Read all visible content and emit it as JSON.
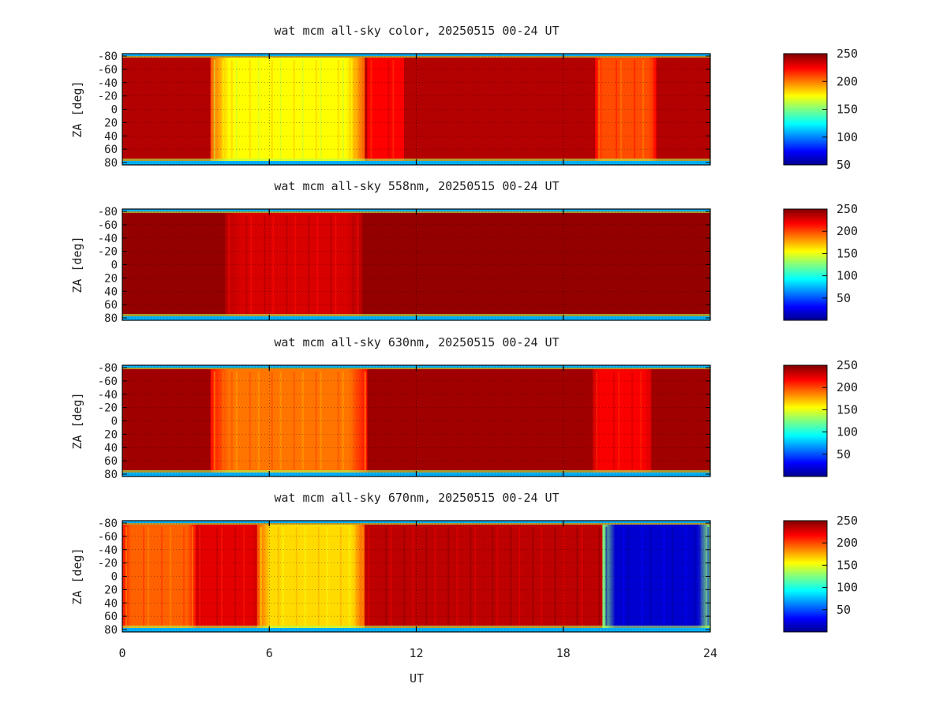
{
  "chart_data": [
    {
      "type": "heatmap",
      "title": "wat mcm all-sky color, 20250515 00-24 UT",
      "ylabel": "ZA [deg]",
      "xlim": [
        0,
        24
      ],
      "ylim": [
        -90,
        90
      ],
      "yticks": [
        "-80",
        "-60",
        "-40",
        "-20",
        "0",
        "20",
        "40",
        "60",
        "80"
      ],
      "colorbar": {
        "min": 50,
        "max": 250,
        "ticks": [
          "50",
          "100",
          "150",
          "200",
          "250"
        ]
      },
      "grid": true,
      "features": [
        {
          "t0": 3.6,
          "t1": 9.9,
          "value": 175
        },
        {
          "t0": 10.0,
          "t1": 11.5,
          "value": 225
        },
        {
          "t0": 19.3,
          "t1": 21.8,
          "value": 210
        }
      ],
      "background_value": 240
    },
    {
      "type": "heatmap",
      "title": "wat mcm all-sky 558nm, 20250515 00-24 UT",
      "ylabel": "ZA [deg]",
      "xlim": [
        0,
        24
      ],
      "ylim": [
        -90,
        90
      ],
      "yticks": [
        "-80",
        "-60",
        "-40",
        "-20",
        "0",
        "20",
        "40",
        "60",
        "80"
      ],
      "colorbar": {
        "min": 0,
        "max": 250,
        "ticks": [
          "50",
          "100",
          "150",
          "200",
          "250"
        ]
      },
      "grid": true,
      "features": [
        {
          "t0": 4.2,
          "t1": 9.8,
          "value": 228
        }
      ],
      "background_value": 245
    },
    {
      "type": "heatmap",
      "title": "wat mcm all-sky 630nm, 20250515 00-24 UT",
      "ylabel": "ZA [deg]",
      "xlim": [
        0,
        24
      ],
      "ylim": [
        -90,
        90
      ],
      "yticks": [
        "-80",
        "-60",
        "-40",
        "-20",
        "0",
        "20",
        "40",
        "60",
        "80"
      ],
      "colorbar": {
        "min": 0,
        "max": 250,
        "ticks": [
          "50",
          "100",
          "150",
          "200",
          "250"
        ]
      },
      "grid": true,
      "features": [
        {
          "t0": 3.6,
          "t1": 10.0,
          "value": 190
        },
        {
          "t0": 19.2,
          "t1": 21.6,
          "value": 220
        }
      ],
      "background_value": 242
    },
    {
      "type": "heatmap",
      "title": "wat mcm all-sky 670nm, 20250515 00-24 UT",
      "ylabel": "ZA [deg]",
      "xlabel": "UT",
      "xlim": [
        0,
        24
      ],
      "ylim": [
        -90,
        90
      ],
      "xticks": [
        "0",
        "6",
        "12",
        "18",
        "24"
      ],
      "yticks": [
        "-80",
        "-60",
        "-40",
        "-20",
        "0",
        "20",
        "40",
        "60",
        "80"
      ],
      "colorbar": {
        "min": 0,
        "max": 250,
        "ticks": [
          "50",
          "100",
          "150",
          "200",
          "250"
        ]
      },
      "grid": true,
      "features": [
        {
          "t0": 0.0,
          "t1": 3.0,
          "value": 195
        },
        {
          "t0": 3.0,
          "t1": 5.5,
          "value": 225
        },
        {
          "t0": 5.5,
          "t1": 9.9,
          "value": 165
        },
        {
          "t0": 9.9,
          "t1": 19.6,
          "value": 235
        },
        {
          "t0": 19.6,
          "t1": 24.0,
          "value": 20
        }
      ],
      "background_value": 235
    }
  ]
}
